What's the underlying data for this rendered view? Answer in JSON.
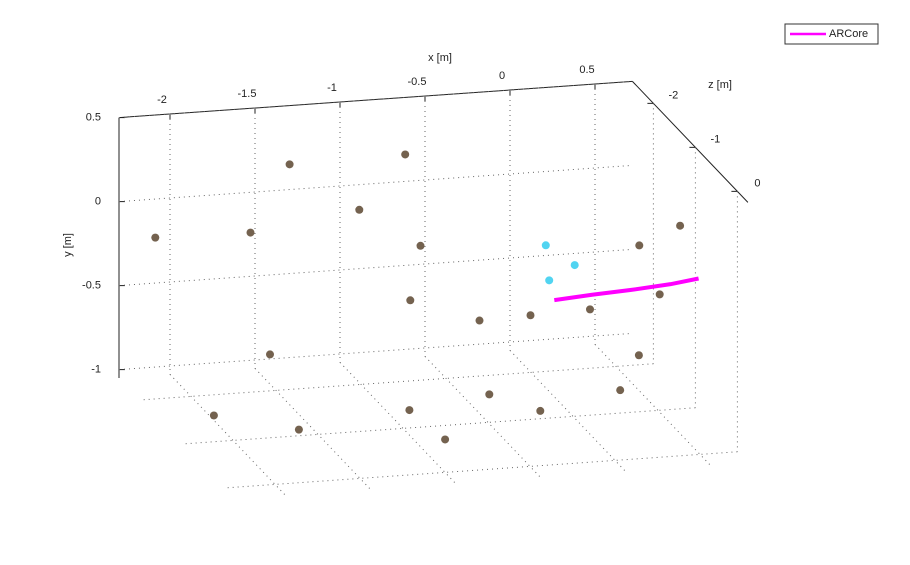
{
  "chart_data": {
    "type": "scatter3d",
    "xlabel": "x [m]",
    "ylabel": "y [m]",
    "zlabel": "z [m]",
    "xlim": [
      -2.3,
      0.72
    ],
    "ylim": [
      -1.05,
      0.5
    ],
    "zlim": [
      -2.5,
      0.25
    ],
    "xticks": [
      -2,
      -1.5,
      -1,
      -0.5,
      0,
      0.5
    ],
    "yticks": [
      -1,
      -0.5,
      0,
      0.5
    ],
    "zticks": [
      -2,
      -1,
      0
    ],
    "grid": true,
    "legend_position": "upper right",
    "series": [
      {
        "name": "ARCore",
        "color": "#ff00ff",
        "x": [
          -0.11,
          0.1,
          0.3,
          0.5,
          0.64
        ],
        "y": [
          -0.35,
          -0.32,
          -0.28,
          -0.22,
          -0.17
        ],
        "z": [
          -1,
          -0.95,
          -0.85,
          -0.7,
          -0.6
        ]
      }
    ],
    "points": [
      {
        "color": "#5c4630",
        "x": [
          -1.42,
          -1.65,
          -0.74,
          -1.01,
          -0.65,
          -2.21,
          -0.55,
          -0.25,
          0.1,
          0.39,
          0.63,
          0.19,
          0.08,
          -0.95,
          -0.39,
          -0.69,
          -1.98,
          -2.31,
          -1.81,
          -1.16,
          -0.71,
          0.51
        ],
        "y": [
          0.29,
          -0.1,
          0.3,
          -0.01,
          -0.25,
          -0.09,
          -0.44,
          -0.43,
          -0.42,
          -0.06,
          0.04,
          -0.49,
          -0.69,
          -0.91,
          -0.78,
          -0.66,
          -0.33,
          -0.67,
          -0.79,
          -0.72,
          -0.57,
          -0.36
        ],
        "z": [
          -2,
          -2,
          -2,
          -2,
          -2,
          -2,
          -1,
          -1,
          -1,
          -1,
          -1,
          -0.2,
          -0.2,
          -0.2,
          -0.2,
          -0.2,
          -0.2,
          -0.2,
          -0.2,
          -0.2,
          -2,
          -1
        ]
      },
      {
        "color": "#33ccee",
        "x": [
          -0.14,
          0.01,
          -0.16
        ],
        "y": [
          -0.23,
          -0.15,
          -0.02
        ],
        "z": [
          -1,
          -1,
          -1
        ]
      }
    ]
  }
}
